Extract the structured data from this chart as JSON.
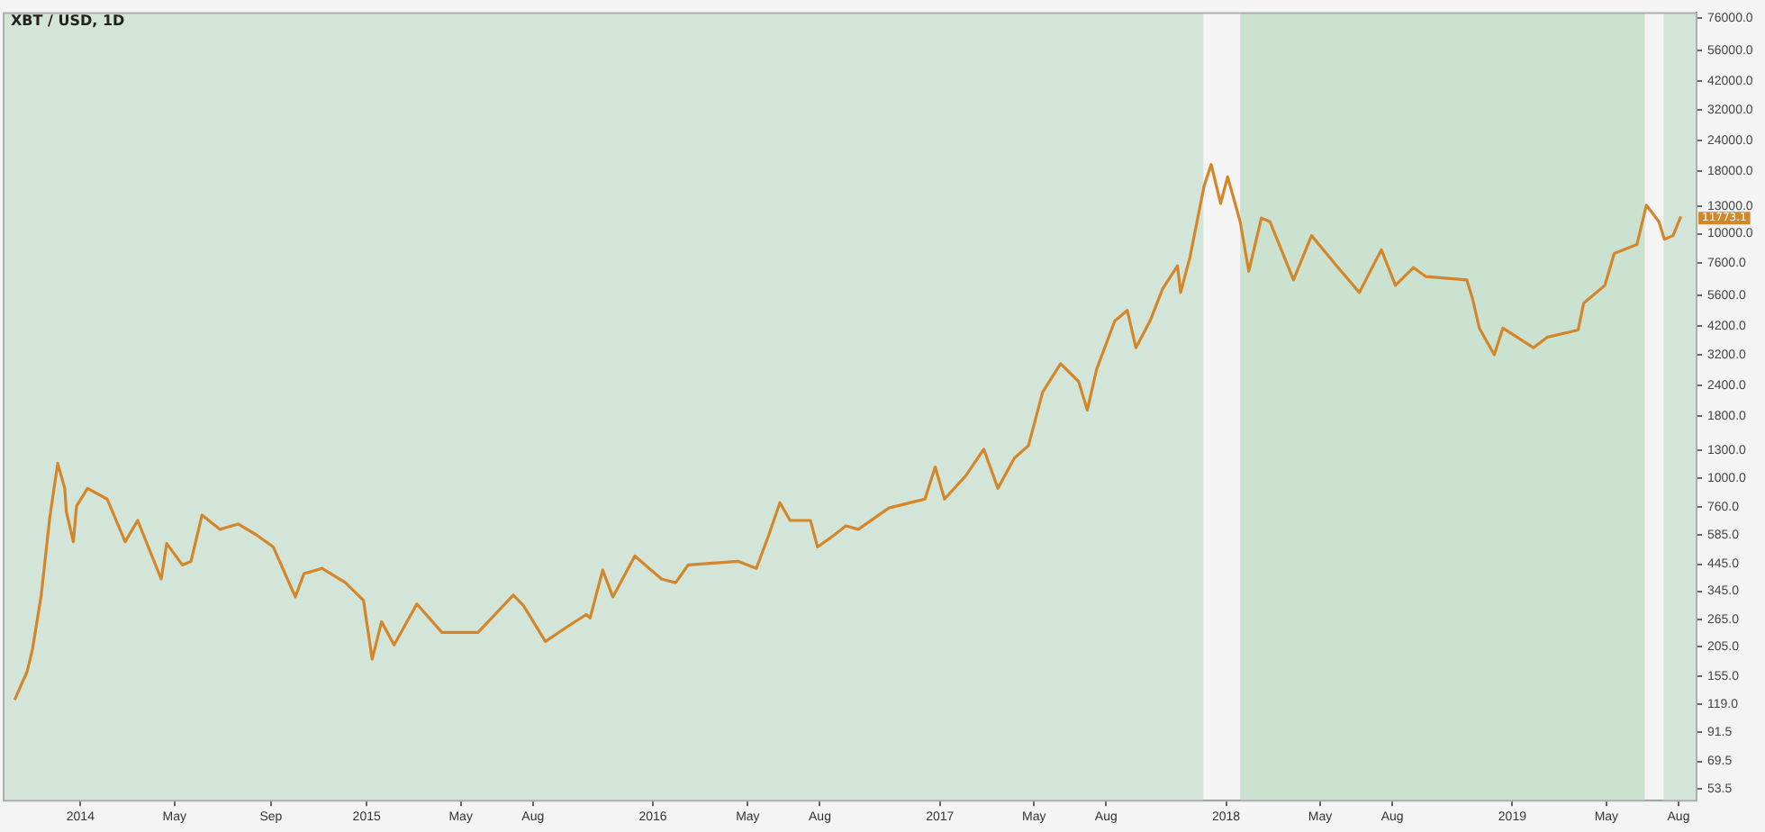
{
  "chart_data": {
    "type": "line",
    "title": "XBT / USD, 1D",
    "x": [
      "2013-10-09",
      "2013-10-25",
      "2013-11-01",
      "2013-11-12",
      "2013-11-23",
      "2013-12-03",
      "2013-12-12",
      "2013-12-14",
      "2013-12-23",
      "2013-12-27",
      "2014-01-10",
      "2014-02-04",
      "2014-02-27",
      "2014-03-15",
      "2014-04-14",
      "2014-04-21",
      "2014-05-11",
      "2014-05-22",
      "2014-06-05",
      "2014-06-28",
      "2014-07-21",
      "2014-08-13",
      "2014-09-04",
      "2014-10-02",
      "2014-10-13",
      "2014-11-05",
      "2014-12-05",
      "2014-12-28",
      "2015-01-08",
      "2015-01-20",
      "2015-02-05",
      "2015-03-06",
      "2015-04-07",
      "2015-05-23",
      "2015-07-07",
      "2015-07-20",
      "2015-08-17",
      "2015-09-13",
      "2015-10-08",
      "2015-10-13",
      "2015-10-29",
      "2015-11-11",
      "2015-12-09",
      "2016-01-12",
      "2016-01-30",
      "2016-02-15",
      "2016-04-19",
      "2016-05-12",
      "2016-05-28",
      "2016-06-11",
      "2016-06-24",
      "2016-07-20",
      "2016-07-29",
      "2016-08-20",
      "2016-09-03",
      "2016-09-19",
      "2016-10-28",
      "2016-12-13",
      "2016-12-26",
      "2017-01-07",
      "2017-02-03",
      "2017-02-26",
      "2017-03-16",
      "2017-04-06",
      "2017-04-24",
      "2017-05-12",
      "2017-06-04",
      "2017-06-27",
      "2017-07-08",
      "2017-07-20",
      "2017-08-12",
      "2017-08-28",
      "2017-09-08",
      "2017-09-26",
      "2017-10-12",
      "2017-10-31",
      "2017-11-04",
      "2017-11-16",
      "2017-12-04",
      "2017-12-13",
      "2017-12-25",
      "2018-01-03",
      "2018-01-19",
      "2018-01-30",
      "2018-02-15",
      "2018-02-26",
      "2018-03-28",
      "2018-04-20",
      "2018-05-22",
      "2018-06-20",
      "2018-07-18",
      "2018-08-05",
      "2018-08-28",
      "2018-09-13",
      "2018-11-04",
      "2018-11-11",
      "2018-11-20",
      "2018-12-09",
      "2018-12-20",
      "2019-01-28",
      "2019-02-15",
      "2019-03-26",
      "2019-04-02",
      "2019-04-29",
      "2019-05-11",
      "2019-06-09",
      "2019-06-21",
      "2019-07-07",
      "2019-07-14",
      "2019-07-25",
      "2019-08-04"
    ],
    "series": [
      {
        "color": "#d4862a",
        "values": [
          124,
          162,
          201,
          333,
          695,
          1150,
          909,
          731,
          550,
          769,
          909,
          822,
          550,
          672,
          387,
          541,
          442,
          457,
          707,
          618,
          650,
          588,
          523,
          327,
          407,
          428,
          374,
          316,
          182,
          259,
          208,
          306,
          234,
          234,
          333,
          301,
          215,
          246,
          277,
          268,
          421,
          327,
          481,
          387,
          374,
          442,
          457,
          428,
          588,
          795,
          672,
          672,
          523,
          588,
          639,
          618,
          756,
          822,
          1112,
          822,
          1023,
          1315,
          909,
          1209,
          1360,
          2247,
          2940,
          2486,
          1901,
          2796,
          4395,
          4861,
          3418,
          4395,
          5944,
          7392,
          5748,
          8037,
          15700,
          19200,
          13300,
          17100,
          11200,
          7030,
          11600,
          11200,
          6470,
          9830,
          7390,
          5750,
          8600,
          6150,
          7270,
          6680,
          6470,
          5470,
          4110,
          3200,
          4110,
          3420,
          3780,
          4040,
          5200,
          6150,
          8310,
          9040,
          13100,
          11200,
          9500,
          9830,
          11773.1
        ]
      }
    ],
    "xlim": [
      "2013-09-25",
      "2019-08-24"
    ],
    "xticks": [
      {
        "value": "2014-01-01",
        "label": "2014"
      },
      {
        "value": "2014-05-01",
        "label": "May"
      },
      {
        "value": "2014-09-01",
        "label": "Sep"
      },
      {
        "value": "2015-01-01",
        "label": "2015"
      },
      {
        "value": "2015-05-01",
        "label": "May"
      },
      {
        "value": "2015-08-01",
        "label": "Aug"
      },
      {
        "value": "2016-01-01",
        "label": "2016"
      },
      {
        "value": "2016-05-01",
        "label": "May"
      },
      {
        "value": "2016-08-01",
        "label": "Aug"
      },
      {
        "value": "2017-01-01",
        "label": "2017"
      },
      {
        "value": "2017-05-01",
        "label": "May"
      },
      {
        "value": "2017-08-01",
        "label": "Aug"
      },
      {
        "value": "2018-01-01",
        "label": "2018"
      },
      {
        "value": "2018-05-01",
        "label": "May"
      },
      {
        "value": "2018-08-01",
        "label": "Aug"
      },
      {
        "value": "2019-01-01",
        "label": "2019"
      },
      {
        "value": "2019-05-01",
        "label": "May"
      },
      {
        "value": "2019-08-01",
        "label": "Aug"
      }
    ],
    "log": "y",
    "ylim": [
      48,
      80000
    ],
    "yticks": [
      53.5,
      69.5,
      91.5,
      {
        "value": 119,
        "label": "119.0"
      },
      {
        "value": 155,
        "label": "155.0"
      },
      {
        "value": 205,
        "label": "205.0"
      },
      {
        "value": 265,
        "label": "265.0"
      },
      {
        "value": 345,
        "label": "345.0"
      },
      {
        "value": 445,
        "label": "445.0"
      },
      {
        "value": 585,
        "label": "585.0"
      },
      {
        "value": 760,
        "label": "760.0"
      },
      {
        "value": 1000,
        "label": "1000.0"
      },
      {
        "value": 1300,
        "label": "1300.0"
      },
      {
        "value": 1800,
        "label": "1800.0"
      },
      {
        "value": 2400,
        "label": "2400.0"
      },
      {
        "value": 3200,
        "label": "3200.0"
      },
      {
        "value": 4200,
        "label": "4200.0"
      },
      {
        "value": 5600,
        "label": "5600.0"
      },
      {
        "value": 7600,
        "label": "7600.0"
      },
      {
        "value": 10000,
        "label": "10000.0"
      },
      {
        "value": 13000,
        "label": "13000.0"
      },
      {
        "value": 18000,
        "label": "18000.0"
      },
      {
        "value": 24000,
        "label": "24000.0"
      },
      {
        "value": 32000,
        "label": "32000.0"
      },
      {
        "value": 42000,
        "label": "42000.0"
      },
      {
        "value": 56000,
        "label": "56000.0"
      },
      {
        "value": 76000,
        "label": "76000.0"
      }
    ],
    "bands": [
      {
        "axis": "x",
        "from": "2013-09-25",
        "to": "2017-12-03",
        "color": "#d3e5d8"
      },
      {
        "axis": "x",
        "from": "2018-01-19",
        "to": "2019-06-19",
        "color": "#cbe2d1"
      },
      {
        "axis": "x",
        "from": "2019-07-13",
        "to": "2019-08-24",
        "color": "#d3e5d8"
      }
    ],
    "annotations": [
      {
        "text": "11773.1",
        "x": "2019-08-04",
        "y": 11773.1
      }
    ],
    "grid": false,
    "legend": false
  }
}
